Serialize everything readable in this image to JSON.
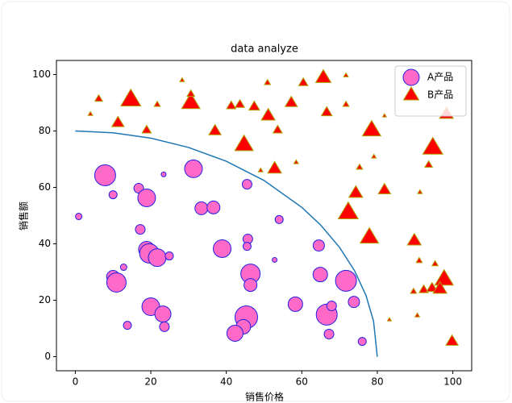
{
  "chart_data": {
    "type": "scatter",
    "title": "data analyze",
    "xlabel": "销售价格",
    "ylabel": "销售额",
    "xlim": [
      -5,
      105
    ],
    "ylim": [
      -5,
      105
    ],
    "xticks": [
      0,
      20,
      40,
      60,
      80,
      100
    ],
    "yticks": [
      0,
      20,
      40,
      60,
      80,
      100
    ],
    "legend": "upper right",
    "series": [
      {
        "name": "A产品",
        "marker": "circle",
        "color": "#ff69c8",
        "edgecolor": "#2020e0",
        "x": [
          7.9,
          0.9,
          10,
          16.8,
          18.9,
          31.3,
          23.4,
          17.2,
          18.9,
          19.6,
          21.7,
          24.9,
          10,
          10.9,
          12.8,
          20,
          23.2,
          23.6,
          13.8,
          33.4,
          36.6,
          38.9,
          45.5,
          45.7,
          45.5,
          46.4,
          46.4,
          54,
          52.8,
          45.3,
          44.5,
          42.3,
          58.3,
          64.5,
          64.9,
          66.6,
          67.9,
          67.2,
          71.7,
          73.8,
          76
        ],
        "values": [
          64.3,
          49.7,
          57.4,
          59.7,
          56.3,
          66.6,
          64.6,
          45.1,
          38,
          36.6,
          35.1,
          35.7,
          28.3,
          26.3,
          31.7,
          17.7,
          15.1,
          10.6,
          11.1,
          52.6,
          52.9,
          38.3,
          61.1,
          41.7,
          39.1,
          29.4,
          25.4,
          48.6,
          34.3,
          14,
          10.6,
          8.3,
          18.6,
          39.4,
          29.1,
          14.9,
          18,
          8,
          26.9,
          19.4,
          5.4
        ],
        "sizes": [
          676,
          64,
          100,
          144,
          484,
          484,
          36,
          144,
          400,
          576,
          484,
          100,
          256,
          576,
          64,
          484,
          400,
          144,
          100,
          256,
          256,
          484,
          144,
          144,
          100,
          576,
          256,
          100,
          36,
          784,
          324,
          400,
          324,
          196,
          324,
          676,
          144,
          144,
          676,
          196,
          100
        ]
      },
      {
        "name": "B产品",
        "marker": "triangle",
        "color": "#ff0000",
        "edgecolor": "#b0a000",
        "x": [
          6.2,
          4,
          11.3,
          14.7,
          18.9,
          21.7,
          28.3,
          30.6,
          30.6,
          37,
          41.3,
          43.6,
          47.4,
          44.7,
          50.9,
          51.1,
          53.6,
          52.8,
          49.1,
          57.2,
          60.4,
          65.7,
          66.6,
          58.5,
          71.7,
          71.7,
          75.3,
          78.5,
          79.1,
          74.3,
          81.9,
          72.3,
          77.9,
          89.8,
          81.9,
          91.3,
          94.7,
          93.6,
          98.3,
          91.1,
          95.3,
          97.7,
          89.6,
          92.3,
          94.5,
          96.6,
          90.6,
          83.2,
          99.8
        ],
        "values": [
          91.4,
          86,
          82.9,
          91.1,
          80.3,
          89.4,
          98,
          90,
          93.1,
          80,
          88.9,
          89.4,
          88.6,
          75.1,
          97.1,
          85.4,
          80.3,
          66.6,
          66,
          90,
          97.1,
          98.9,
          86.6,
          68.9,
          99.7,
          89.4,
          67.1,
          80.3,
          70.9,
          58,
          59.1,
          51.1,
          42.3,
          41.1,
          85.4,
          58.3,
          74,
          68,
          86,
          34,
          32.9,
          27.4,
          23.1,
          23.7,
          24.3,
          24,
          14.6,
          13.1,
          5.4
        ],
        "sizes": [
          100,
          36,
          256,
          676,
          144,
          64,
          36,
          576,
          100,
          256,
          144,
          144,
          196,
          576,
          64,
          324,
          144,
          324,
          36,
          256,
          144,
          400,
          196,
          36,
          36,
          64,
          64,
          576,
          36,
          324,
          256,
          676,
          576,
          324,
          25,
          36,
          676,
          100,
          324,
          64,
          64,
          576,
          64,
          144,
          196,
          324,
          36,
          25,
          256
        ]
      }
    ],
    "lines": [
      {
        "color": "#1f77b4",
        "x": [
          0,
          10,
          20,
          30,
          40,
          50,
          60,
          65,
          70,
          74,
          77,
          79,
          80
        ],
        "values": [
          80,
          79.37,
          77.46,
          74.16,
          69.28,
          62.45,
          52.92,
          46.64,
          38.73,
          30.4,
          21.7,
          12.61,
          0
        ]
      }
    ]
  }
}
